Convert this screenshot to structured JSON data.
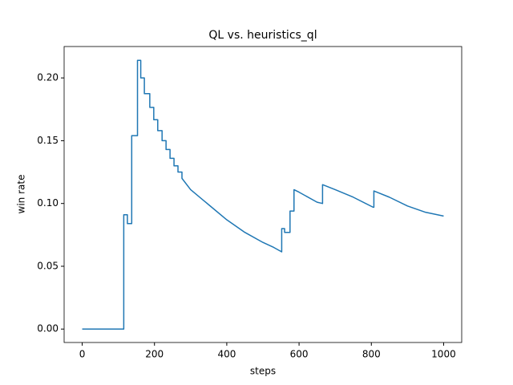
{
  "chart_data": {
    "type": "line",
    "title": "QL vs. heuristics_ql",
    "x_label": "steps",
    "y_label": "win rate",
    "x": [
      0,
      115,
      115,
      125,
      125,
      137,
      137,
      153,
      153,
      162,
      162,
      172,
      172,
      187,
      187,
      198,
      198,
      209,
      209,
      221,
      221,
      232,
      232,
      243,
      243,
      254,
      254,
      265,
      265,
      276,
      276,
      300,
      350,
      400,
      450,
      500,
      530,
      552,
      552,
      560,
      560,
      575,
      575,
      586,
      586,
      600,
      650,
      665,
      665,
      700,
      750,
      805,
      807,
      807,
      850,
      900,
      950,
      1000
    ],
    "values": [
      0,
      0,
      0.091,
      0.091,
      0.084,
      0.084,
      0.154,
      0.154,
      0.214,
      0.214,
      0.2,
      0.2,
      0.1875,
      0.1875,
      0.1765,
      0.1765,
      0.1667,
      0.1667,
      0.158,
      0.158,
      0.15,
      0.15,
      0.143,
      0.143,
      0.136,
      0.136,
      0.13,
      0.13,
      0.125,
      0.125,
      0.12,
      0.111,
      0.099,
      0.087,
      0.077,
      0.069,
      0.065,
      0.0615,
      0.08,
      0.08,
      0.077,
      0.077,
      0.094,
      0.094,
      0.111,
      0.109,
      0.101,
      0.1,
      0.115,
      0.111,
      0.105,
      0.097,
      0.097,
      0.11,
      0.105,
      0.098,
      0.093,
      0.09
    ],
    "color": "#1f77b4",
    "xlim": [
      -50,
      1050
    ],
    "xticks": [
      0,
      200,
      400,
      600,
      800,
      1000
    ],
    "ylim": [
      -0.0107,
      0.225
    ],
    "yticks": [
      {
        "value": 0,
        "label": "0.00"
      },
      {
        "value": 0.05,
        "label": "0.05"
      },
      {
        "value": 0.1,
        "label": "0.10"
      },
      {
        "value": 0.15,
        "label": "0.15"
      },
      {
        "value": 0.2,
        "label": "0.20"
      }
    ]
  }
}
